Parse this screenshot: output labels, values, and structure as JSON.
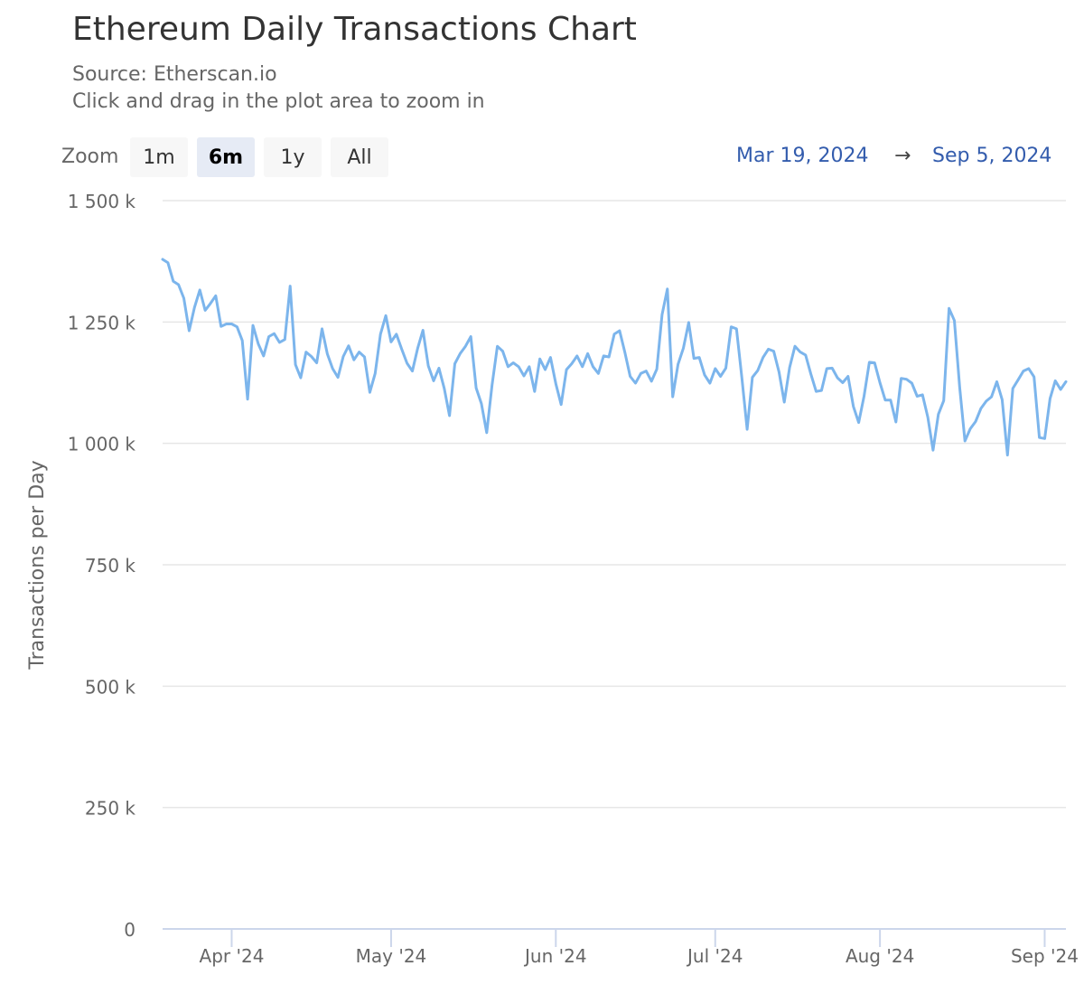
{
  "header": {
    "title": "Ethereum Daily Transactions Chart",
    "source": "Source: Etherscan.io",
    "hint": "Click and drag in the plot area to zoom in"
  },
  "zoom": {
    "label": "Zoom",
    "buttons": [
      "1m",
      "6m",
      "1y",
      "All"
    ],
    "active": "6m"
  },
  "range": {
    "from": "Mar 19, 2024",
    "arrow": "→",
    "to": "Sep 5, 2024"
  },
  "chart_data": {
    "type": "line",
    "title": "Ethereum Daily Transactions Chart",
    "subtitle": "Source: Etherscan.io",
    "xlabel": "",
    "ylabel": "Transactions per Day",
    "ylim": [
      0,
      1500000
    ],
    "y_ticks": [
      {
        "value": 0,
        "label": "0"
      },
      {
        "value": 250000,
        "label": "250 k"
      },
      {
        "value": 500000,
        "label": "500 k"
      },
      {
        "value": 750000,
        "label": "750 k"
      },
      {
        "value": 1000000,
        "label": "1 000 k"
      },
      {
        "value": 1250000,
        "label": "1 250 k"
      },
      {
        "value": 1500000,
        "label": "1 500 k"
      }
    ],
    "x_ticks": [
      {
        "date": "2024-04-01",
        "label": "Apr '24"
      },
      {
        "date": "2024-05-01",
        "label": "May '24"
      },
      {
        "date": "2024-06-01",
        "label": "Jun '24"
      },
      {
        "date": "2024-07-01",
        "label": "Jul '24"
      },
      {
        "date": "2024-08-01",
        "label": "Aug '24"
      },
      {
        "date": "2024-09-01",
        "label": "Sep '24"
      }
    ],
    "line_color": "#7cb5ec",
    "grid": true,
    "legend": "none",
    "series": [
      {
        "values": [
          1379000,
          1372000,
          1334000,
          1327000,
          1299000,
          1232000,
          1280000,
          1316000,
          1274000,
          1288000,
          1304000,
          1241000,
          1246000,
          1246000,
          1240000,
          1212000,
          1091000,
          1243000,
          1205000,
          1180000,
          1220000,
          1226000,
          1208000,
          1214000,
          1324000,
          1162000,
          1135000,
          1188000,
          1179000,
          1166000,
          1236000,
          1184000,
          1154000,
          1136000,
          1179000,
          1201000,
          1172000,
          1188000,
          1178000,
          1105000,
          1144000,
          1225000,
          1263000,
          1209000,
          1225000,
          1194000,
          1165000,
          1149000,
          1196000,
          1233000,
          1160000,
          1129000,
          1155000,
          1113000,
          1057000,
          1164000,
          1185000,
          1200000,
          1220000,
          1114000,
          1082000,
          1022000,
          1120000,
          1200000,
          1190000,
          1158000,
          1166000,
          1158000,
          1139000,
          1158000,
          1107000,
          1174000,
          1152000,
          1177000,
          1123000,
          1080000,
          1152000,
          1164000,
          1180000,
          1158000,
          1185000,
          1158000,
          1144000,
          1180000,
          1178000,
          1225000,
          1232000,
          1187000,
          1138000,
          1124000,
          1144000,
          1149000,
          1128000,
          1153000,
          1265000,
          1318000,
          1096000,
          1163000,
          1196000,
          1249000,
          1175000,
          1177000,
          1141000,
          1124000,
          1154000,
          1138000,
          1155000,
          1240000,
          1236000,
          1136000,
          1029000,
          1136000,
          1150000,
          1177000,
          1194000,
          1190000,
          1147000,
          1085000,
          1156000,
          1200000,
          1188000,
          1182000,
          1143000,
          1107000,
          1109000,
          1154000,
          1155000,
          1135000,
          1125000,
          1138000,
          1076000,
          1043000,
          1097000,
          1167000,
          1166000,
          1125000,
          1089000,
          1089000,
          1044000,
          1134000,
          1132000,
          1124000,
          1097000,
          1100000,
          1054000,
          986000,
          1060000,
          1088000,
          1278000,
          1253000,
          1115000,
          1005000,
          1030000,
          1045000,
          1072000,
          1087000,
          1096000,
          1127000,
          1090000,
          976000,
          1113000,
          1131000,
          1149000,
          1154000,
          1137000,
          1012000,
          1010000,
          1092000,
          1129000,
          1111000,
          1127000
        ]
      }
    ]
  }
}
